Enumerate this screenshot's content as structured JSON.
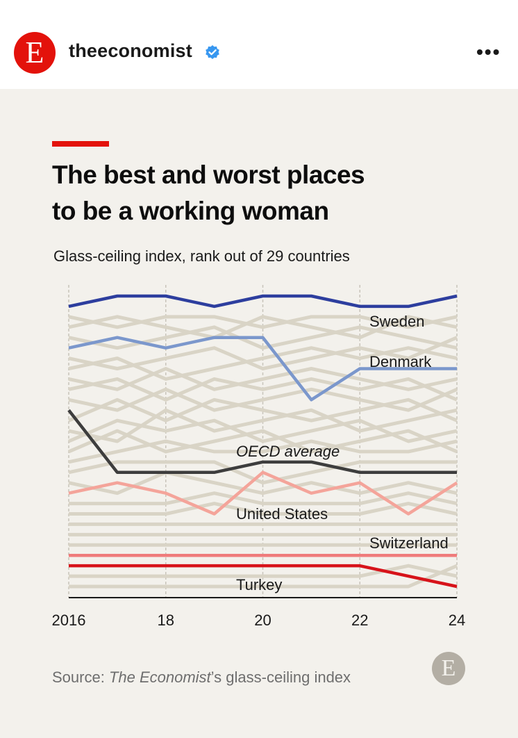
{
  "post": {
    "username": "theeconomist",
    "avatar_letter": "E",
    "verified_icon": "verified-badge-icon",
    "more_label": "•••",
    "accent_color": "#e3120b"
  },
  "figure": {
    "title_line1": "The best and worst places",
    "title_line2": "to be a working woman",
    "subtitle": "Glass-ceiling index, rank out of 29 countries",
    "source_prefix": "Source: ",
    "source_italic": "The Economist",
    "source_suffix": "’s glass-ceiling index",
    "logo_letter": "E"
  },
  "chart_data": {
    "type": "line",
    "title": "The best and worst places to be a working woman",
    "ylabel": "Glass-ceiling index, rank out of 29 countries",
    "x": [
      2016,
      2017,
      2018,
      2019,
      2020,
      2021,
      2022,
      2023,
      2024
    ],
    "x_tick_values": [
      2016,
      2018,
      2020,
      2022,
      2024
    ],
    "x_tick_labels": [
      "2016",
      "18",
      "20",
      "22",
      "24"
    ],
    "xlim": [
      2016,
      2024
    ],
    "ylim": [
      1,
      29
    ],
    "y_inverted": true,
    "series": [
      {
        "name": "Sweden",
        "label": "Sweden",
        "italic": false,
        "color": "#2d3e9e",
        "highlight": true,
        "values": [
          2,
          1,
          1,
          2,
          1,
          1,
          2,
          2,
          1
        ]
      },
      {
        "name": "Denmark",
        "label": "Denmark",
        "italic": false,
        "color": "#7b97cc",
        "highlight": true,
        "values": [
          6,
          5,
          6,
          5,
          5,
          11,
          8,
          8,
          8
        ]
      },
      {
        "name": "OECD average",
        "label": "OECD average",
        "italic": true,
        "color": "#3d3d3d",
        "highlight": true,
        "values": [
          12,
          18,
          18,
          18,
          17,
          17,
          18,
          18,
          18
        ]
      },
      {
        "name": "United States",
        "label": "United States",
        "italic": false,
        "color": "#f4a49a",
        "highlight": true,
        "values": [
          20,
          19,
          20,
          22,
          18,
          20,
          19,
          22,
          19
        ]
      },
      {
        "name": "Switzerland",
        "label": "Switzerland",
        "italic": false,
        "color": "#ef7b7b",
        "highlight": true,
        "values": [
          26,
          26,
          26,
          26,
          26,
          26,
          26,
          26,
          26
        ]
      },
      {
        "name": "Turkey",
        "label": "Turkey",
        "italic": false,
        "color": "#d7131a",
        "highlight": true,
        "values": [
          27,
          27,
          27,
          27,
          27,
          27,
          27,
          28,
          29
        ]
      }
    ],
    "background_series": [
      [
        3,
        4,
        3,
        3,
        4,
        3,
        3,
        4,
        3
      ],
      [
        4,
        3,
        4,
        5,
        3,
        4,
        5,
        3,
        4
      ],
      [
        5,
        6,
        5,
        4,
        6,
        5,
        4,
        5,
        6
      ],
      [
        7,
        8,
        7,
        6,
        8,
        7,
        6,
        7,
        5
      ],
      [
        8,
        7,
        9,
        8,
        7,
        6,
        7,
        6,
        7
      ],
      [
        9,
        10,
        8,
        10,
        9,
        8,
        9,
        10,
        9
      ],
      [
        10,
        9,
        11,
        9,
        10,
        9,
        10,
        9,
        11
      ],
      [
        11,
        12,
        10,
        12,
        11,
        10,
        11,
        12,
        10
      ],
      [
        13,
        11,
        13,
        11,
        12,
        13,
        12,
        11,
        13
      ],
      [
        14,
        15,
        12,
        14,
        13,
        12,
        14,
        13,
        12
      ],
      [
        15,
        13,
        14,
        13,
        15,
        14,
        13,
        15,
        14
      ],
      [
        16,
        14,
        16,
        15,
        14,
        16,
        15,
        14,
        16
      ],
      [
        17,
        16,
        15,
        16,
        16,
        15,
        16,
        16,
        15
      ],
      [
        18,
        17,
        17,
        17,
        19,
        18,
        17,
        17,
        17
      ],
      [
        19,
        20,
        18,
        19,
        20,
        19,
        20,
        19,
        20
      ],
      [
        21,
        21,
        21,
        20,
        21,
        21,
        21,
        20,
        21
      ],
      [
        22,
        22,
        22,
        21,
        22,
        22,
        22,
        21,
        22
      ],
      [
        23,
        23,
        23,
        23,
        23,
        23,
        23,
        23,
        23
      ],
      [
        24,
        24,
        24,
        24,
        24,
        24,
        24,
        24,
        24
      ],
      [
        25,
        25,
        25,
        25,
        25,
        25,
        25,
        25,
        25
      ],
      [
        28,
        28,
        28,
        28,
        28,
        28,
        28,
        27,
        28
      ],
      [
        29,
        29,
        29,
        29,
        29,
        29,
        29,
        29,
        27
      ]
    ],
    "background_color": "#d9d4c6",
    "grid": true
  }
}
